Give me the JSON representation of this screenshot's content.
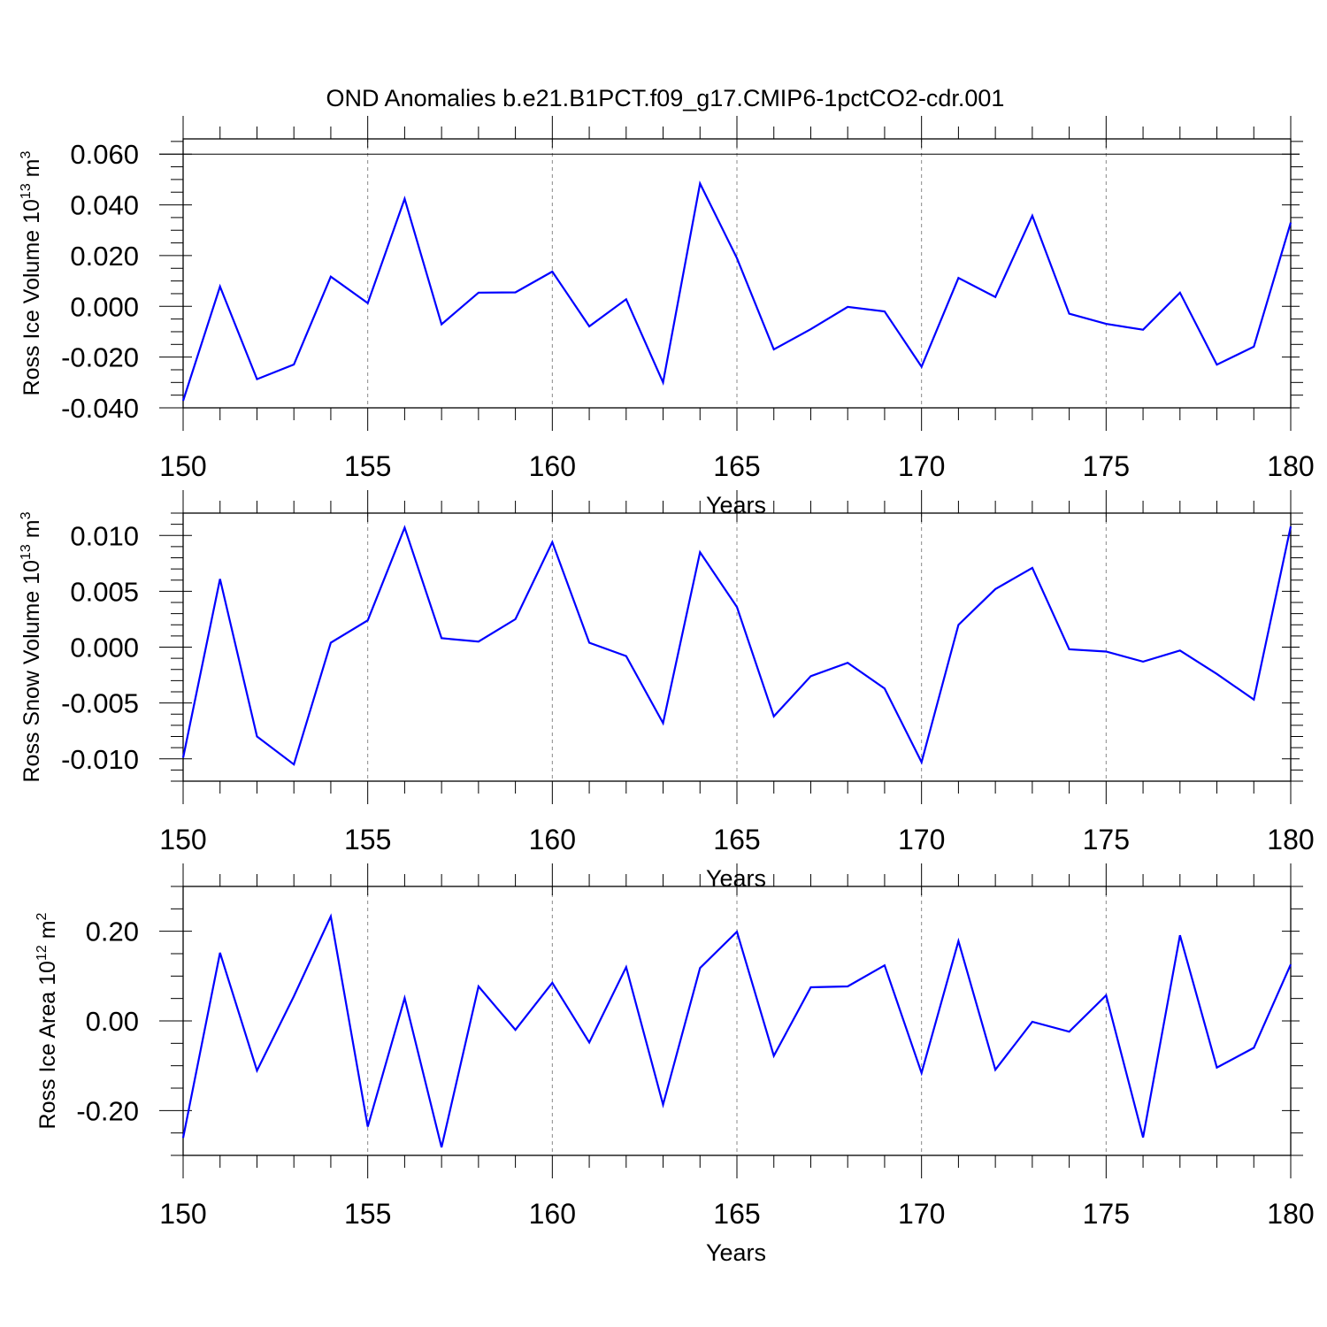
{
  "title": "OND Anomalies b.e21.B1PCT.f09_g17.CMIP6-1pctCO2-cdr.001",
  "colors": {
    "line": "#0000ff",
    "axis": "#000000",
    "grid": "#888888"
  },
  "chart_data": [
    {
      "type": "line",
      "ylabel": "Ross Ice Volume 10",
      "ylabel_exp": "13",
      "ylabel_unit": " m",
      "ylabel_unit_exp": "3",
      "xlabel": "Years",
      "xlim": [
        150,
        180
      ],
      "ylim": [
        -0.04,
        0.066
      ],
      "x_ticks": [
        150,
        155,
        160,
        165,
        170,
        175,
        180
      ],
      "x_tick_labels": [
        "150",
        "155",
        "160",
        "165",
        "170",
        "175",
        "180"
      ],
      "y_ticks": [
        -0.04,
        -0.02,
        0.0,
        0.02,
        0.04,
        0.06
      ],
      "y_tick_labels": [
        "-0.040",
        "-0.020",
        "0.000",
        "0.020",
        "0.040",
        "0.060"
      ],
      "y_minor_step": 0.005,
      "ref_y": [
        0.06
      ],
      "x": [
        150,
        151,
        152,
        153,
        154,
        155,
        156,
        157,
        158,
        159,
        160,
        161,
        162,
        163,
        164,
        165,
        166,
        167,
        168,
        169,
        170,
        171,
        172,
        173,
        174,
        175,
        176,
        177,
        178,
        179,
        180
      ],
      "values": [
        -0.0372,
        0.0078,
        -0.0287,
        -0.0229,
        0.0117,
        0.0013,
        0.0424,
        -0.0071,
        0.0054,
        0.0055,
        0.0137,
        -0.0079,
        0.0028,
        -0.03,
        0.0484,
        0.019,
        -0.017,
        -0.009,
        -0.0002,
        -0.002,
        -0.0238,
        0.0112,
        0.0037,
        0.0357,
        -0.0029,
        -0.0069,
        -0.0092,
        0.0054,
        -0.023,
        -0.0159,
        0.033
      ]
    },
    {
      "type": "line",
      "ylabel": "Ross Snow Volume 10",
      "ylabel_exp": "13",
      "ylabel_unit": " m",
      "ylabel_unit_exp": "3",
      "xlabel": "Years",
      "xlim": [
        150,
        180
      ],
      "ylim": [
        -0.012,
        0.012
      ],
      "x_ticks": [
        150,
        155,
        160,
        165,
        170,
        175,
        180
      ],
      "x_tick_labels": [
        "150",
        "155",
        "160",
        "165",
        "170",
        "175",
        "180"
      ],
      "y_ticks": [
        -0.01,
        -0.005,
        0.0,
        0.005,
        0.01
      ],
      "y_tick_labels": [
        "-0.010",
        "-0.005",
        "0.000",
        "0.005",
        "0.010"
      ],
      "y_minor_step": 0.001,
      "ref_y": [],
      "x": [
        150,
        151,
        152,
        153,
        154,
        155,
        156,
        157,
        158,
        159,
        160,
        161,
        162,
        163,
        164,
        165,
        166,
        167,
        168,
        169,
        170,
        171,
        172,
        173,
        174,
        175,
        176,
        177,
        178,
        179,
        180
      ],
      "values": [
        -0.0099,
        0.0061,
        -0.008,
        -0.0105,
        0.0004,
        0.0024,
        0.0107,
        0.0008,
        0.0005,
        0.0025,
        0.0094,
        0.0004,
        -0.0008,
        -0.0068,
        0.0085,
        0.0036,
        -0.0062,
        -0.0026,
        -0.0014,
        -0.0037,
        -0.0103,
        0.002,
        0.0052,
        0.0071,
        -0.0002,
        -0.0004,
        -0.0013,
        -0.0003,
        -0.0024,
        -0.0047,
        0.0108
      ]
    },
    {
      "type": "line",
      "ylabel": "Ross Ice Area 10",
      "ylabel_exp": "12",
      "ylabel_unit": " m",
      "ylabel_unit_exp": "2",
      "xlabel": "Years",
      "xlim": [
        150,
        180
      ],
      "ylim": [
        -0.3,
        0.3
      ],
      "x_ticks": [
        150,
        155,
        160,
        165,
        170,
        175,
        180
      ],
      "x_tick_labels": [
        "150",
        "155",
        "160",
        "165",
        "170",
        "175",
        "180"
      ],
      "y_ticks": [
        -0.2,
        0.0,
        0.2
      ],
      "y_tick_labels": [
        "-0.20",
        "0.00",
        "0.20"
      ],
      "y_minor_step": 0.05,
      "ref_y": [],
      "x": [
        150,
        151,
        152,
        153,
        154,
        155,
        156,
        157,
        158,
        159,
        160,
        161,
        162,
        163,
        164,
        165,
        166,
        167,
        168,
        169,
        170,
        171,
        172,
        173,
        174,
        175,
        176,
        177,
        178,
        179,
        180
      ],
      "values": [
        -0.261,
        0.152,
        -0.111,
        0.055,
        0.233,
        -0.236,
        0.051,
        -0.282,
        0.077,
        -0.02,
        0.085,
        -0.048,
        0.12,
        -0.187,
        0.118,
        0.199,
        -0.078,
        0.075,
        0.077,
        0.124,
        -0.116,
        0.178,
        -0.109,
        -0.002,
        -0.024,
        0.057,
        -0.26,
        0.191,
        -0.104,
        -0.06,
        0.126
      ]
    }
  ]
}
